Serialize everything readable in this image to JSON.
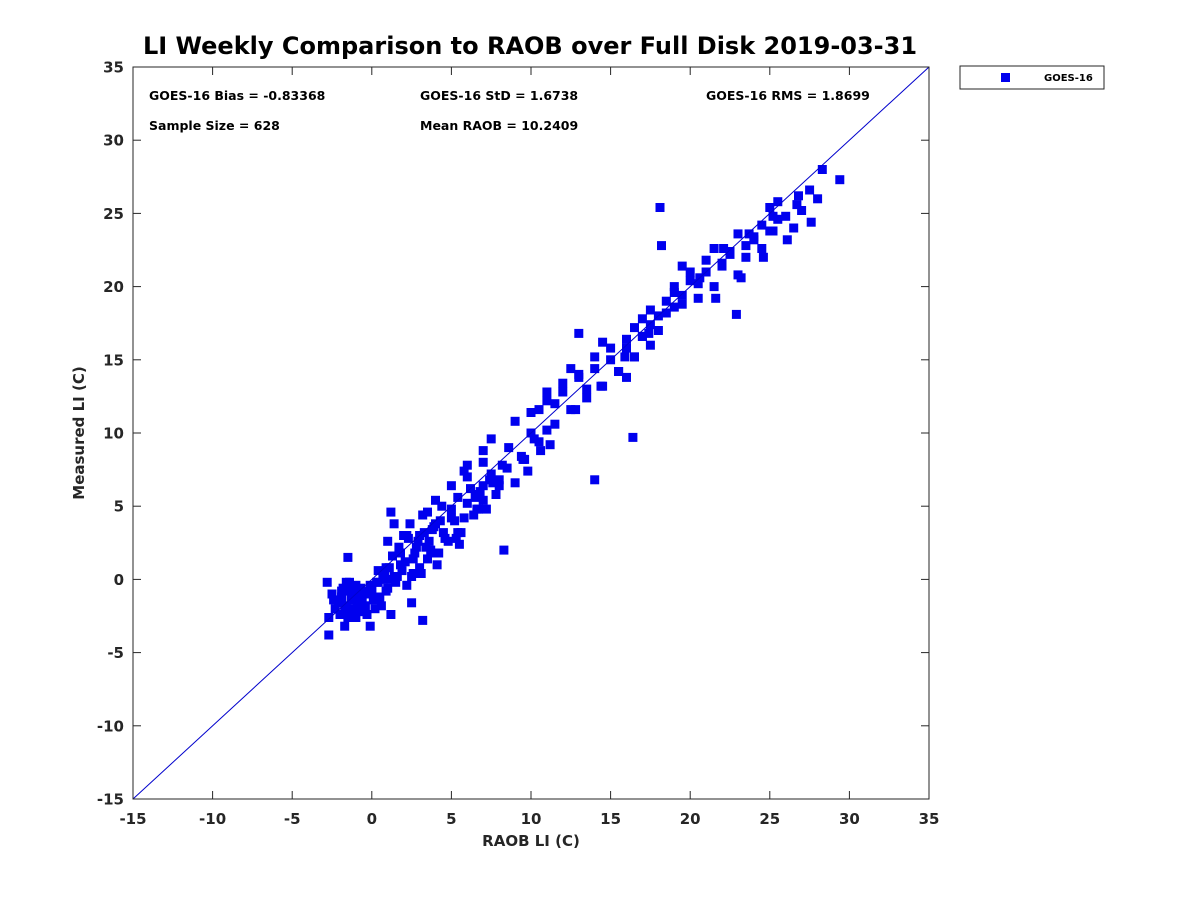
{
  "chart_data": {
    "type": "scatter",
    "title": "LI Weekly Comparison to RAOB over Full Disk 2019-03-31",
    "xlabel": "RAOB LI (C)",
    "ylabel": "Measured LI (C)",
    "xlim": [
      -15,
      35
    ],
    "ylim": [
      -15,
      35
    ],
    "xticks": [
      -15,
      -10,
      -5,
      0,
      5,
      10,
      15,
      20,
      25,
      30,
      35
    ],
    "yticks": [
      -15,
      -10,
      -5,
      0,
      5,
      10,
      15,
      20,
      25,
      30,
      35
    ],
    "grid": false,
    "legend_position": "outside-top-right",
    "reference_line": {
      "name": "1:1 line",
      "from": [
        -15,
        -15
      ],
      "to": [
        35,
        35
      ],
      "color": "#0000cc"
    },
    "stats": {
      "bias": "GOES-16 Bias = -0.83368",
      "std": "GOES-16 StD = 1.6738",
      "rms": "GOES-16 RMS = 1.8699",
      "sample_size": "Sample Size = 628",
      "mean_raob": "Mean RAOB = 10.2409"
    },
    "series": [
      {
        "name": "GOES-16",
        "color": "#0000ee",
        "marker": "square",
        "x": [
          -2.8,
          -2.7,
          -2.5,
          -2.3,
          -2.1,
          -2.0,
          -1.9,
          -1.8,
          -1.7,
          -1.6,
          -1.5,
          -1.4,
          -1.3,
          -1.2,
          -1.1,
          -1.0,
          -0.9,
          -0.8,
          -0.7,
          -0.6,
          -0.5,
          -0.4,
          -0.3,
          -0.2,
          -0.1,
          0.0,
          0.1,
          0.2,
          0.3,
          0.4,
          -2.4,
          -1.9,
          -1.5,
          -1.2,
          -0.8,
          -0.4,
          0.0,
          0.4,
          0.8,
          1.2,
          -1.6,
          -1.0,
          -0.5,
          0.1,
          0.6,
          1.0,
          1.4,
          1.8,
          2.2,
          2.6,
          0.5,
          0.7,
          0.9,
          1.1,
          1.3,
          1.5,
          1.7,
          1.9,
          2.1,
          2.3,
          2.5,
          2.7,
          2.9,
          3.1,
          3.3,
          3.5,
          3.7,
          3.9,
          4.1,
          4.3,
          1.0,
          1.4,
          1.8,
          2.2,
          2.6,
          3.0,
          3.4,
          3.8,
          4.2,
          4.6,
          5.0,
          5.4,
          5.8,
          1.2,
          1.6,
          2.0,
          2.4,
          2.8,
          3.2,
          3.6,
          4.0,
          4.4,
          4.8,
          5.2,
          5.6,
          6.0,
          6.4,
          6.8,
          7.2,
          7.6,
          3.0,
          3.5,
          4.0,
          4.5,
          5.0,
          5.5,
          6.0,
          6.5,
          7.0,
          7.5,
          5.0,
          5.4,
          5.8,
          6.2,
          6.6,
          7.0,
          7.4,
          7.8,
          8.2,
          8.6,
          9.0,
          9.4,
          9.8,
          10.2,
          10.6,
          11.0,
          6.0,
          6.5,
          7.0,
          7.5,
          8.0,
          8.5,
          9.0,
          9.5,
          10.0,
          10.5,
          11.0,
          11.5,
          12.0,
          12.5,
          13.0,
          13.5,
          14.0,
          14.5,
          15.0,
          15.5,
          16.0,
          16.5,
          17.0,
          17.5,
          10.0,
          10.5,
          11.0,
          11.5,
          12.0,
          12.5,
          13.0,
          13.5,
          14.0,
          14.5,
          15.0,
          15.5,
          16.0,
          16.5,
          17.0,
          17.5,
          18.0,
          18.5,
          19.0,
          19.5,
          16.0,
          16.5,
          17.0,
          17.5,
          18.0,
          18.5,
          19.0,
          19.5,
          20.0,
          20.5,
          21.0,
          21.5,
          22.0,
          22.5,
          23.0,
          23.5,
          24.0,
          24.5,
          25.0,
          25.5,
          20.0,
          20.5,
          21.0,
          21.5,
          22.0,
          22.5,
          23.0,
          23.5,
          24.0,
          24.5,
          25.0,
          25.5,
          26.0,
          26.5,
          27.0,
          27.5,
          28.0,
          28.3,
          29.4,
          26.8,
          -2.7,
          -1.7,
          -0.1,
          1.2,
          3.2,
          8.3,
          14.0,
          16.4,
          18.1,
          22.9,
          24.6,
          27.6,
          26.1,
          23.2,
          25.2,
          18.2,
          19.5,
          21.6,
          13.0,
          7.0,
          -1.5,
          -0.6,
          0.9,
          2.5,
          4.0,
          5.3,
          6.7,
          8.0,
          9.6,
          11.2,
          12.8,
          14.4,
          15.9,
          17.4,
          19.0,
          20.6,
          22.1,
          23.7,
          25.2,
          26.7
        ],
        "y": [
          -0.2,
          -2.6,
          -1.0,
          -2.0,
          -1.6,
          -2.4,
          -1.2,
          -0.6,
          -2.2,
          -1.8,
          -0.8,
          -0.2,
          -1.4,
          -2.0,
          -1.0,
          -0.4,
          -1.6,
          -2.2,
          -0.6,
          -1.2,
          -0.8,
          -1.8,
          -2.4,
          -1.0,
          -0.4,
          -0.8,
          -1.2,
          -2.0,
          -0.2,
          0.6,
          -1.4,
          -0.8,
          -2.6,
          -0.6,
          -1.8,
          -1.0,
          -0.6,
          -0.2,
          0.4,
          0.0,
          -0.2,
          -2.6,
          -2.0,
          -1.4,
          -1.8,
          -0.6,
          0.2,
          1.0,
          -0.4,
          0.4,
          -1.2,
          0.0,
          -0.8,
          0.8,
          1.6,
          -0.2,
          2.2,
          0.6,
          1.2,
          2.8,
          0.2,
          1.8,
          2.6,
          0.4,
          3.2,
          1.4,
          2.0,
          3.6,
          1.0,
          4.0,
          2.6,
          3.8,
          1.8,
          3.0,
          1.4,
          0.8,
          2.2,
          3.4,
          1.8,
          2.8,
          4.8,
          3.2,
          4.2,
          4.6,
          0.2,
          3.0,
          3.8,
          2.2,
          4.4,
          2.6,
          3.8,
          5.0,
          2.6,
          4.0,
          3.2,
          5.2,
          4.4,
          6.0,
          4.8,
          6.6,
          3.0,
          4.6,
          5.4,
          3.2,
          6.4,
          2.4,
          7.0,
          5.8,
          6.4,
          7.2,
          4.2,
          5.6,
          7.4,
          6.2,
          4.8,
          8.0,
          6.8,
          5.8,
          7.8,
          9.0,
          6.6,
          8.4,
          7.4,
          9.6,
          8.8,
          10.2,
          7.8,
          5.6,
          8.8,
          9.6,
          6.8,
          7.6,
          10.8,
          8.2,
          11.4,
          9.4,
          12.2,
          10.6,
          12.8,
          11.6,
          13.8,
          12.4,
          14.4,
          13.2,
          15.0,
          14.2,
          15.8,
          15.2,
          16.6,
          16.0,
          10.0,
          11.6,
          12.8,
          12.0,
          13.4,
          14.4,
          14.0,
          13.0,
          15.2,
          16.2,
          15.8,
          14.2,
          16.4,
          17.2,
          17.8,
          18.4,
          18.0,
          19.0,
          20.0,
          19.4,
          13.8,
          15.2,
          16.6,
          17.4,
          17.0,
          18.2,
          19.6,
          18.8,
          20.4,
          19.2,
          21.0,
          20.0,
          21.6,
          22.4,
          20.8,
          22.0,
          23.2,
          22.6,
          23.8,
          24.6,
          21.0,
          20.2,
          21.8,
          22.6,
          21.4,
          22.2,
          23.6,
          22.8,
          23.4,
          24.2,
          25.4,
          25.8,
          24.8,
          24.0,
          25.2,
          26.6,
          26.0,
          28.0,
          27.3,
          26.2,
          -3.8,
          -3.2,
          -3.2,
          -2.4,
          -2.8,
          2.0,
          6.8,
          9.7,
          25.4,
          18.1,
          22.0,
          24.4,
          23.2,
          20.6,
          23.8,
          22.8,
          21.4,
          19.2,
          16.8,
          5.4,
          1.5,
          -2.2,
          0.8,
          -1.6,
          1.8,
          2.8,
          4.8,
          6.4,
          8.2,
          9.2,
          11.6,
          13.2,
          15.2,
          16.8,
          18.6,
          20.6,
          22.6,
          23.6,
          24.8,
          25.6
        ]
      }
    ]
  }
}
